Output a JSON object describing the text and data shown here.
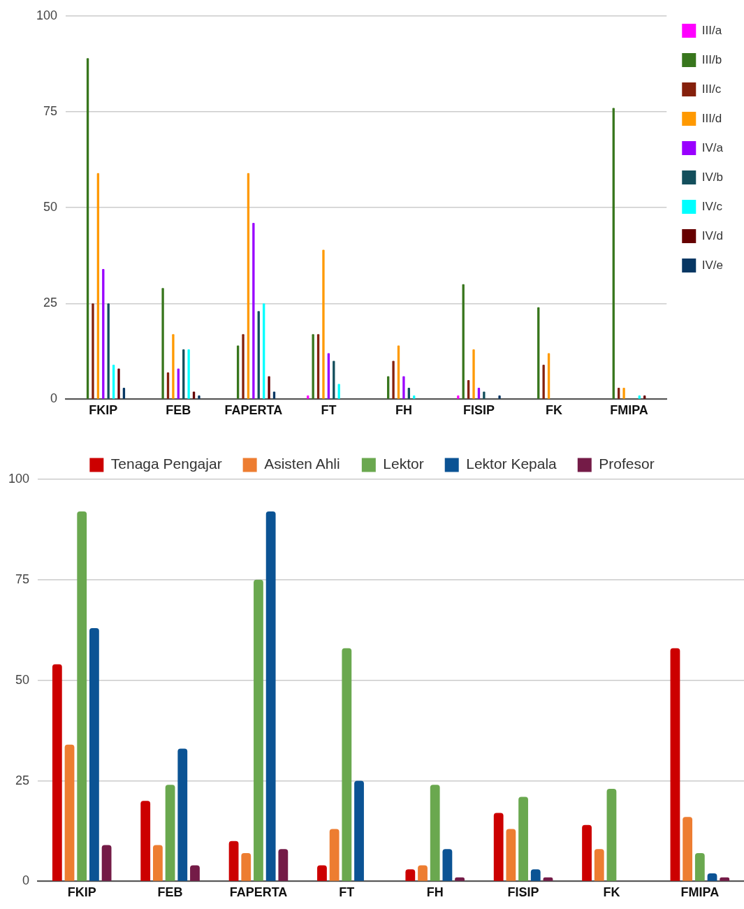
{
  "chart_data": [
    {
      "type": "bar",
      "categories": [
        "FKIP",
        "FEB",
        "FAPERTA",
        "FT",
        "FH",
        "FISIP",
        "FK",
        "FMIPA"
      ],
      "series": [
        {
          "name": "III/a",
          "color": "#ff00ff",
          "values": [
            0,
            0,
            0,
            1,
            0,
            1,
            0,
            0
          ]
        },
        {
          "name": "III/b",
          "color": "#38761d",
          "values": [
            89,
            29,
            14,
            17,
            6,
            30,
            24,
            76
          ]
        },
        {
          "name": "III/c",
          "color": "#85200c",
          "values": [
            25,
            7,
            17,
            17,
            10,
            5,
            9,
            3
          ]
        },
        {
          "name": "III/d",
          "color": "#ff9900",
          "values": [
            59,
            17,
            59,
            39,
            14,
            13,
            12,
            3
          ]
        },
        {
          "name": "IV/a",
          "color": "#9900ff",
          "values": [
            34,
            8,
            46,
            12,
            6,
            3,
            0,
            0
          ]
        },
        {
          "name": "IV/b",
          "color": "#134f5c",
          "values": [
            25,
            13,
            23,
            10,
            3,
            2,
            0,
            0
          ]
        },
        {
          "name": "IV/c",
          "color": "#00ffff",
          "values": [
            9,
            13,
            25,
            4,
            1,
            0,
            0,
            1
          ]
        },
        {
          "name": "IV/d",
          "color": "#660000",
          "values": [
            8,
            2,
            6,
            0,
            0,
            0,
            0,
            1
          ]
        },
        {
          "name": "IV/e",
          "color": "#073763",
          "values": [
            3,
            1,
            2,
            0,
            0,
            1,
            0,
            0
          ]
        }
      ],
      "ylim": [
        0,
        100
      ],
      "yticks": [
        0,
        25,
        50,
        75,
        100
      ],
      "grid": "y",
      "legend": "top right"
    },
    {
      "type": "bar",
      "categories": [
        "FKIP",
        "FEB",
        "FAPERTA",
        "FT",
        "FH",
        "FISIP",
        "FK",
        "FMIPA"
      ],
      "series": [
        {
          "name": "Tenaga Pengajar",
          "color": "#cc0000",
          "values": [
            54,
            20,
            10,
            4,
            3,
            17,
            14,
            58
          ]
        },
        {
          "name": "Asisten Ahli",
          "color": "#ed7d31",
          "values": [
            34,
            9,
            7,
            13,
            4,
            13,
            8,
            16
          ]
        },
        {
          "name": "Lektor",
          "color": "#6aa84f",
          "values": [
            92,
            24,
            75,
            58,
            24,
            21,
            23,
            7
          ]
        },
        {
          "name": "Lektor Kepala",
          "color": "#0b5394",
          "values": [
            63,
            33,
            92,
            25,
            8,
            3,
            0,
            2
          ]
        },
        {
          "name": "Profesor",
          "color": "#741b47",
          "values": [
            9,
            4,
            8,
            0,
            1,
            1,
            0,
            1
          ]
        }
      ],
      "ylim": [
        0,
        100
      ],
      "yticks": [
        0,
        25,
        50,
        75,
        100
      ],
      "grid": "y",
      "legend": "top"
    }
  ]
}
